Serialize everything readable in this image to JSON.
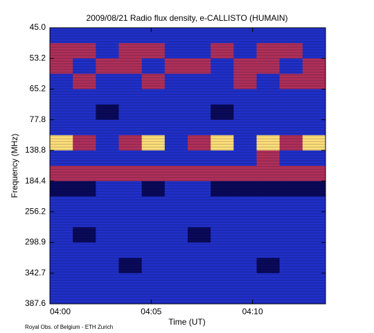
{
  "chart_data": {
    "type": "spectrogram",
    "title": "2009/08/21  Radio flux density, e-CALLISTO (HUMAIN)",
    "x_label": "Time (UT)",
    "y_label": "Frequency (MHz)",
    "footer": "Royal Obs. of Belgium - ETH Zurich",
    "xlim": [
      0,
      13.6
    ],
    "xticks": [
      {
        "value": 0,
        "label": "04:00"
      },
      {
        "value": 5,
        "label": "04:05"
      },
      {
        "value": 10,
        "label": "04:10"
      }
    ],
    "yticks": [
      {
        "value": 45.0,
        "label": "45.0"
      },
      {
        "value": 53.2,
        "label": "53.2"
      },
      {
        "value": 65.2,
        "label": "65.2"
      },
      {
        "value": 77.8,
        "label": "77.8"
      },
      {
        "value": 138.8,
        "label": "138.8"
      },
      {
        "value": 184.4,
        "label": "184.4"
      },
      {
        "value": 256.2,
        "label": "256.2"
      },
      {
        "value": 298.9,
        "label": "298.9"
      },
      {
        "value": 342.7,
        "label": "342.7"
      },
      {
        "value": 387.6,
        "label": "387.6"
      }
    ],
    "colors": [
      "#0a0a5a",
      "#2030c8",
      "#b0305a",
      "#ffe07a"
    ],
    "z": [
      [
        1,
        1,
        1,
        1,
        1,
        1,
        1,
        1,
        1,
        1,
        1,
        1
      ],
      [
        2,
        2,
        1,
        2,
        2,
        1,
        1,
        2,
        1,
        2,
        2,
        1
      ],
      [
        2,
        1,
        2,
        2,
        1,
        2,
        2,
        1,
        2,
        2,
        1,
        2
      ],
      [
        1,
        2,
        1,
        1,
        2,
        1,
        1,
        1,
        2,
        1,
        2,
        2
      ],
      [
        1,
        1,
        1,
        1,
        1,
        1,
        1,
        1,
        1,
        1,
        1,
        1
      ],
      [
        1,
        1,
        0,
        1,
        1,
        1,
        1,
        0,
        1,
        1,
        1,
        1
      ],
      [
        1,
        1,
        1,
        1,
        1,
        1,
        1,
        1,
        1,
        1,
        1,
        1
      ],
      [
        3,
        2,
        1,
        2,
        3,
        1,
        2,
        3,
        1,
        3,
        2,
        3
      ],
      [
        1,
        1,
        1,
        1,
        1,
        1,
        1,
        1,
        1,
        2,
        1,
        1
      ],
      [
        2,
        2,
        2,
        2,
        2,
        2,
        2,
        2,
        2,
        2,
        2,
        2
      ],
      [
        0,
        0,
        1,
        1,
        0,
        1,
        1,
        0,
        0,
        0,
        0,
        0
      ],
      [
        1,
        1,
        1,
        1,
        1,
        1,
        1,
        1,
        1,
        1,
        1,
        1
      ],
      [
        1,
        1,
        1,
        1,
        1,
        1,
        1,
        1,
        1,
        1,
        1,
        1
      ],
      [
        1,
        0,
        1,
        1,
        1,
        1,
        0,
        1,
        1,
        1,
        1,
        1
      ],
      [
        1,
        1,
        1,
        1,
        1,
        1,
        1,
        1,
        1,
        1,
        1,
        1
      ],
      [
        1,
        1,
        1,
        0,
        1,
        1,
        1,
        1,
        1,
        0,
        1,
        1
      ],
      [
        1,
        1,
        1,
        1,
        1,
        1,
        1,
        1,
        1,
        1,
        1,
        1
      ],
      [
        1,
        1,
        1,
        1,
        1,
        1,
        1,
        1,
        1,
        1,
        1,
        1
      ]
    ]
  }
}
